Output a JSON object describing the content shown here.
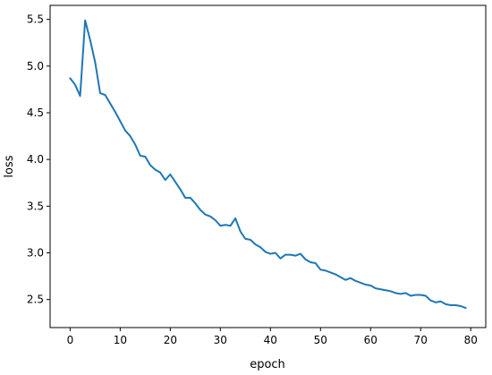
{
  "chart_data": {
    "type": "line",
    "title": "",
    "xlabel": "epoch",
    "ylabel": "loss",
    "xlim": [
      -4,
      83
    ],
    "ylim": [
      2.2,
      5.65
    ],
    "x_ticks": [
      0,
      10,
      20,
      30,
      40,
      50,
      60,
      70,
      80
    ],
    "y_ticks": [
      2.5,
      3.0,
      3.5,
      4.0,
      4.5,
      5.0,
      5.5
    ],
    "grid": false,
    "series": [
      {
        "name": "",
        "color": "#1f77b4",
        "x": [
          0,
          1,
          2,
          3,
          4,
          5,
          6,
          7,
          8,
          9,
          10,
          11,
          12,
          13,
          14,
          15,
          16,
          17,
          18,
          19,
          20,
          21,
          22,
          23,
          24,
          25,
          26,
          27,
          28,
          29,
          30,
          31,
          32,
          33,
          34,
          35,
          36,
          37,
          38,
          39,
          40,
          41,
          42,
          43,
          44,
          45,
          46,
          47,
          48,
          49,
          50,
          51,
          52,
          53,
          54,
          55,
          56,
          57,
          58,
          59,
          60,
          61,
          62,
          63,
          64,
          65,
          66,
          67,
          68,
          69,
          70,
          71,
          72,
          73,
          74,
          75,
          76,
          77,
          78,
          79
        ],
        "y": [
          4.87,
          4.8,
          4.68,
          5.49,
          5.28,
          5.04,
          4.71,
          4.69,
          4.6,
          4.51,
          4.41,
          4.31,
          4.25,
          4.16,
          4.04,
          4.03,
          3.94,
          3.89,
          3.86,
          3.78,
          3.84,
          3.76,
          3.68,
          3.59,
          3.59,
          3.53,
          3.46,
          3.41,
          3.39,
          3.35,
          3.29,
          3.3,
          3.29,
          3.37,
          3.23,
          3.15,
          3.14,
          3.09,
          3.06,
          3.01,
          2.99,
          3.0,
          2.94,
          2.98,
          2.98,
          2.97,
          2.99,
          2.93,
          2.9,
          2.89,
          2.82,
          2.81,
          2.79,
          2.77,
          2.74,
          2.71,
          2.73,
          2.7,
          2.68,
          2.66,
          2.65,
          2.62,
          2.61,
          2.6,
          2.59,
          2.57,
          2.56,
          2.57,
          2.54,
          2.55,
          2.55,
          2.54,
          2.49,
          2.47,
          2.48,
          2.45,
          2.44,
          2.44,
          2.43,
          2.41
        ]
      }
    ]
  }
}
